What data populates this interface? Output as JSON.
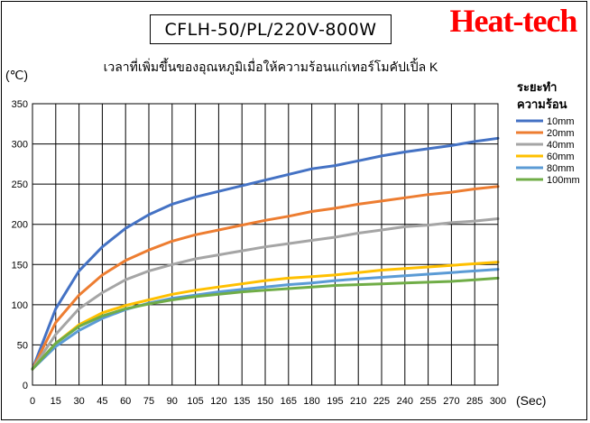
{
  "model_label": "CFLH-50/PL/220V-800W",
  "brand": {
    "text": "Heat-tech",
    "color": "#ff0000"
  },
  "chart_data": {
    "type": "line",
    "title": "เวลาที่เพิ่มขึ้นของอุณหภูมิเมื่อให้ความร้อนแก่เทอร์โมคัปเปิ้ล K",
    "xlabel": "(Sec)",
    "ylabel": "(℃)",
    "xlim": [
      0,
      300
    ],
    "ylim": [
      0,
      350
    ],
    "x_ticks": [
      0,
      15,
      30,
      45,
      60,
      75,
      90,
      105,
      120,
      135,
      150,
      165,
      180,
      195,
      210,
      225,
      240,
      255,
      270,
      285,
      300
    ],
    "y_ticks": [
      0,
      50,
      100,
      150,
      200,
      250,
      300,
      350
    ],
    "grid": true,
    "legend_title": [
      "ระยะทำ",
      "ความร้อน"
    ],
    "legend_position": "right",
    "x": [
      0,
      15,
      30,
      45,
      60,
      75,
      90,
      105,
      120,
      135,
      150,
      165,
      180,
      195,
      210,
      225,
      240,
      255,
      270,
      285,
      300
    ],
    "series": [
      {
        "name": "10mm",
        "color": "#4472c4",
        "values": [
          20,
          95,
          142,
          172,
          195,
          212,
          225,
          234,
          241,
          248,
          255,
          262,
          269,
          273,
          279,
          285,
          290,
          294,
          298,
          303,
          307
        ]
      },
      {
        "name": "20mm",
        "color": "#ed7d31",
        "values": [
          20,
          78,
          112,
          137,
          155,
          168,
          179,
          187,
          193,
          199,
          205,
          210,
          216,
          220,
          225,
          229,
          233,
          237,
          240,
          244,
          247
        ]
      },
      {
        "name": "40mm",
        "color": "#a5a5a5",
        "values": [
          20,
          63,
          95,
          115,
          131,
          142,
          150,
          157,
          162,
          167,
          172,
          176,
          180,
          184,
          189,
          193,
          197,
          199,
          202,
          204,
          207
        ]
      },
      {
        "name": "60mm",
        "color": "#ffc000",
        "values": [
          20,
          52,
          75,
          90,
          99,
          106,
          113,
          118,
          122,
          126,
          130,
          133,
          135,
          137,
          140,
          143,
          145,
          147,
          149,
          151,
          153
        ]
      },
      {
        "name": "80mm",
        "color": "#5b9bd5",
        "values": [
          20,
          48,
          68,
          83,
          94,
          102,
          108,
          112,
          116,
          119,
          122,
          125,
          127,
          130,
          132,
          134,
          136,
          138,
          140,
          142,
          144
        ]
      },
      {
        "name": "100mm",
        "color": "#70ad47",
        "values": [
          20,
          52,
          73,
          86,
          95,
          101,
          106,
          110,
          113,
          116,
          118,
          120,
          122,
          124,
          125,
          126,
          127,
          128,
          129,
          131,
          133
        ]
      }
    ]
  }
}
